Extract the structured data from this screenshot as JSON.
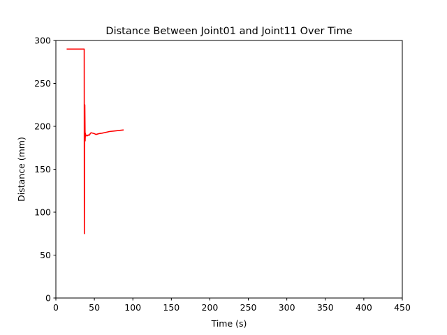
{
  "chart_data": {
    "type": "line",
    "title": "Distance Between Joint01 and Joint11 Over Time",
    "xlabel": "Time (s)",
    "ylabel": "Distance (mm)",
    "xlim": [
      0,
      450
    ],
    "ylim": [
      0,
      300
    ],
    "xticks": [
      0,
      50,
      100,
      150,
      200,
      250,
      300,
      350,
      400,
      450
    ],
    "yticks": [
      0,
      50,
      100,
      150,
      200,
      250,
      300
    ],
    "grid": false,
    "series": [
      {
        "color": "#ff0000",
        "x": [
          14,
          20,
          25,
          30,
          36.8,
          37.0,
          37.2,
          37.4,
          37.6,
          37.8,
          38.0,
          38.3,
          38.6,
          39,
          40,
          41,
          42,
          43,
          44,
          45,
          46,
          48,
          50,
          52,
          54,
          56,
          60,
          65,
          70,
          75,
          80,
          85,
          88
        ],
        "y": [
          290,
          290,
          290,
          290,
          290,
          75,
          120,
          180,
          225,
          205,
          183,
          192,
          188,
          190,
          189.5,
          189,
          190,
          189.5,
          190.5,
          192,
          192.5,
          192,
          191.5,
          190.5,
          191,
          191.5,
          192,
          193,
          194,
          194.5,
          195,
          195.5,
          195.8
        ]
      }
    ]
  }
}
